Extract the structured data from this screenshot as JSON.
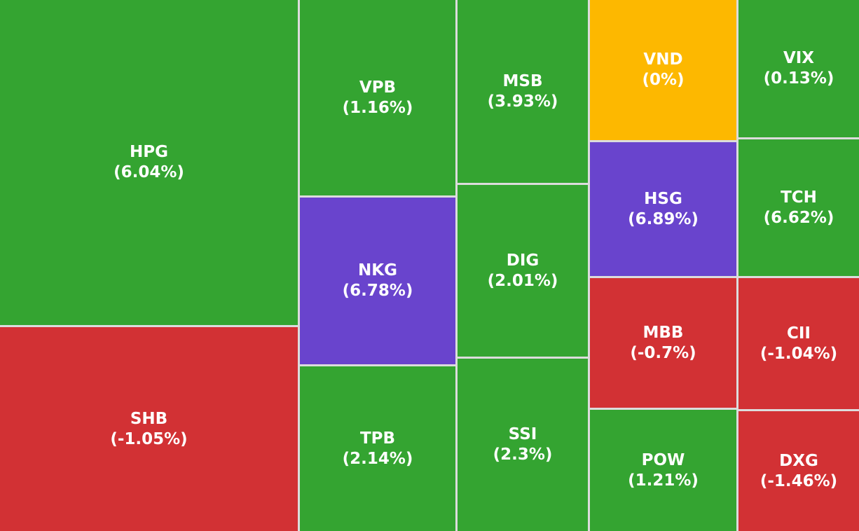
{
  "tiles": [
    {
      "symbol": "HPG",
      "change": "(6.04%)",
      "color": "#34a431"
    },
    {
      "symbol": "SHB",
      "change": "(-1.05%)",
      "color": "#d23134"
    },
    {
      "symbol": "VPB",
      "change": "(1.16%)",
      "color": "#34a431"
    },
    {
      "symbol": "NKG",
      "change": "(6.78%)",
      "color": "#6944cd"
    },
    {
      "symbol": "TPB",
      "change": "(2.14%)",
      "color": "#34a431"
    },
    {
      "symbol": "MSB",
      "change": "(3.93%)",
      "color": "#34a431"
    },
    {
      "symbol": "DIG",
      "change": "(2.01%)",
      "color": "#34a431"
    },
    {
      "symbol": "SSI",
      "change": "(2.3%)",
      "color": "#34a431"
    },
    {
      "symbol": "VND",
      "change": "(0%)",
      "color": "#fdb800"
    },
    {
      "symbol": "HSG",
      "change": "(6.89%)",
      "color": "#6944cd"
    },
    {
      "symbol": "MBB",
      "change": "(-0.7%)",
      "color": "#d23134"
    },
    {
      "symbol": "POW",
      "change": "(1.21%)",
      "color": "#34a431"
    },
    {
      "symbol": "VIX",
      "change": "(0.13%)",
      "color": "#34a431"
    },
    {
      "symbol": "TCH",
      "change": "(6.62%)",
      "color": "#34a431"
    },
    {
      "symbol": "CII",
      "change": "(-1.04%)",
      "color": "#d23134"
    },
    {
      "symbol": "DXG",
      "change": "(-1.46%)",
      "color": "#d23134"
    }
  ]
}
